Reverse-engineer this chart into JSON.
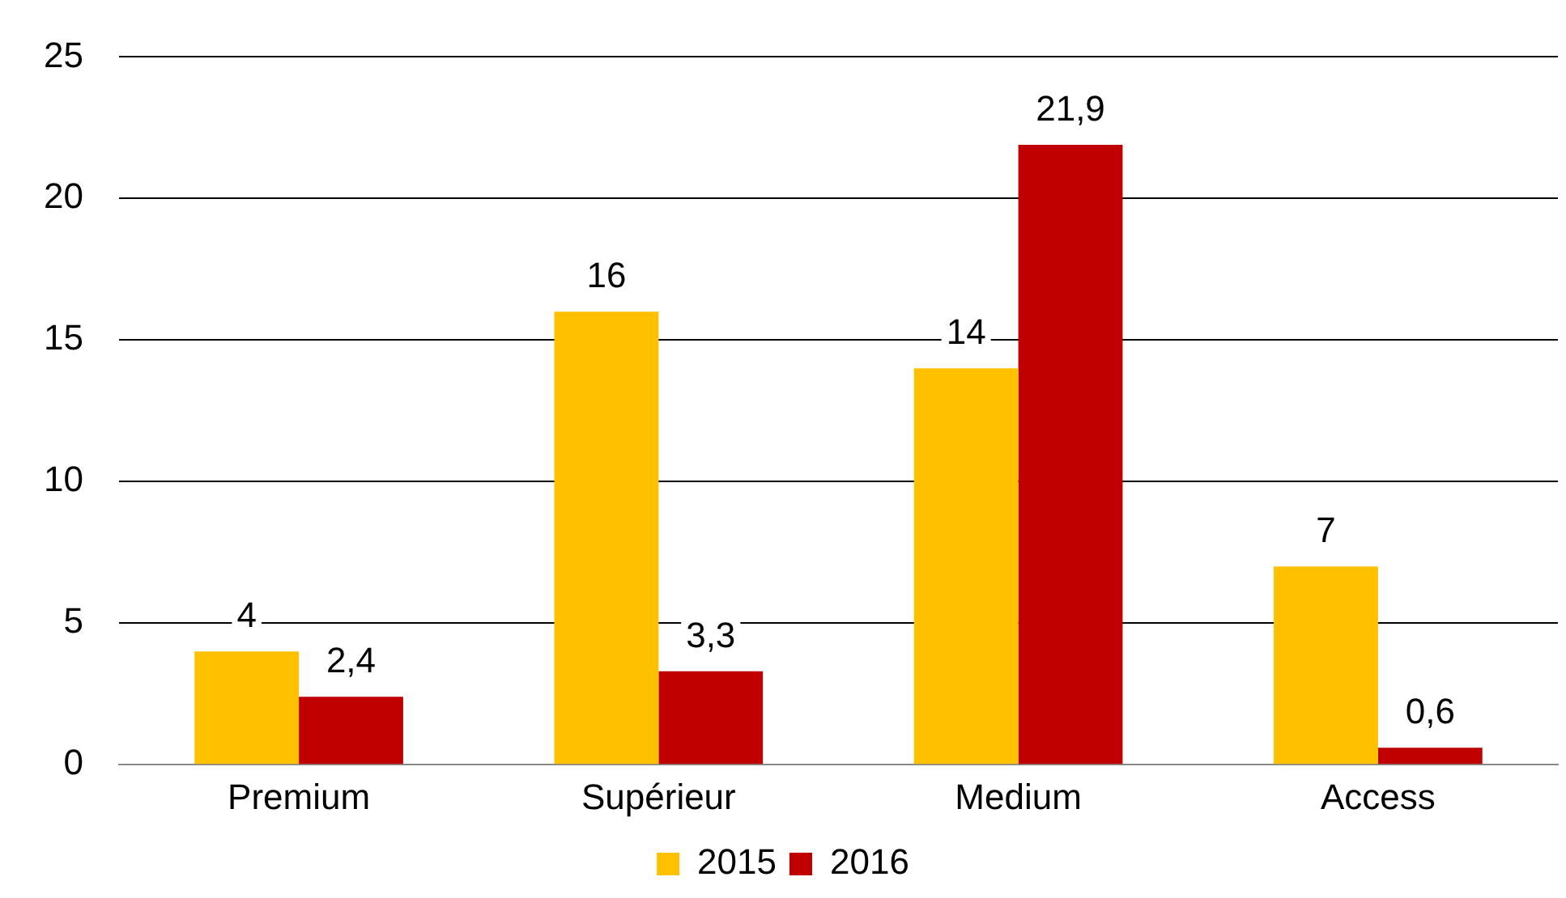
{
  "chart_data": {
    "type": "bar",
    "categories": [
      "Premium",
      "Supérieur",
      "Medium",
      "Access"
    ],
    "series": [
      {
        "name": "2015",
        "color": "#ffc000",
        "values": [
          4,
          16,
          14,
          7
        ],
        "value_labels": [
          "4",
          "16",
          "14",
          "7"
        ]
      },
      {
        "name": "2016",
        "color": "#c00000",
        "values": [
          2.4,
          3.3,
          21.9,
          0.6
        ],
        "value_labels": [
          "2,4",
          "3,3",
          "21,9",
          "0,6"
        ]
      }
    ],
    "ylim": [
      0,
      25
    ],
    "yticks": [
      0,
      5,
      10,
      15,
      20,
      25
    ],
    "grid": "y",
    "legend": "bottom"
  }
}
